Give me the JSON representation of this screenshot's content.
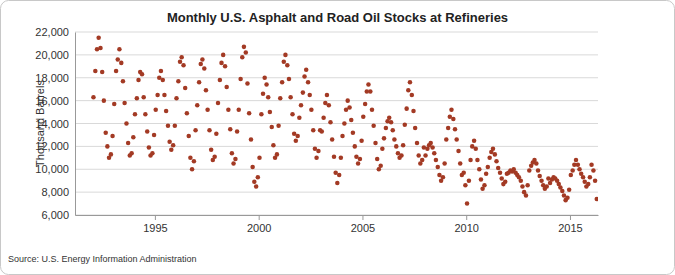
{
  "chart_data": {
    "type": "scatter",
    "title": "Monthly U.S. Asphalt and Road Oil Stocks at Refineries",
    "y_label": "Thousand Barrels",
    "source": "Source: U.S. Energy Information Administration",
    "color": "#a33a24",
    "marker": "circle",
    "grid": true,
    "xlim": [
      1991.15,
      2016.35
    ],
    "xticks": [
      1995,
      2000,
      2005,
      2010,
      2015
    ],
    "ylim": [
      6000,
      22000
    ],
    "yticks": [
      {
        "value": 6000,
        "label": "6,000"
      },
      {
        "value": 8000,
        "label": "8,000"
      },
      {
        "value": 10000,
        "label": "10,000"
      },
      {
        "value": 12000,
        "label": "12,000"
      },
      {
        "value": 14000,
        "label": "14,000"
      },
      {
        "value": 16000,
        "label": "16,000"
      },
      {
        "value": 18000,
        "label": "18,000"
      },
      {
        "value": 20000,
        "label": "20,000"
      },
      {
        "value": 22000,
        "label": "22,000"
      }
    ],
    "x": [
      1992.04,
      1992.13,
      1992.21,
      1992.29,
      1992.38,
      1992.46,
      1992.54,
      1992.63,
      1992.71,
      1992.79,
      1992.88,
      1992.96,
      1993.04,
      1993.13,
      1993.21,
      1993.29,
      1993.38,
      1993.46,
      1993.54,
      1993.63,
      1993.71,
      1993.79,
      1993.88,
      1993.96,
      1994.04,
      1994.13,
      1994.21,
      1994.29,
      1994.38,
      1994.46,
      1994.54,
      1994.63,
      1994.71,
      1994.79,
      1994.88,
      1994.96,
      1995.04,
      1995.13,
      1995.21,
      1995.29,
      1995.38,
      1995.46,
      1995.54,
      1995.63,
      1995.71,
      1995.79,
      1995.88,
      1995.96,
      1996.04,
      1996.13,
      1996.21,
      1996.29,
      1996.38,
      1996.46,
      1996.54,
      1996.63,
      1996.71,
      1996.79,
      1996.88,
      1996.96,
      1997.04,
      1997.13,
      1997.21,
      1997.29,
      1997.38,
      1997.46,
      1997.54,
      1997.63,
      1997.71,
      1997.79,
      1997.88,
      1997.96,
      1998.04,
      1998.13,
      1998.21,
      1998.29,
      1998.38,
      1998.46,
      1998.54,
      1998.63,
      1998.71,
      1998.79,
      1998.88,
      1998.96,
      1999.04,
      1999.13,
      1999.21,
      1999.29,
      1999.38,
      1999.46,
      1999.54,
      1999.63,
      1999.71,
      1999.79,
      1999.88,
      1999.96,
      2000.04,
      2000.13,
      2000.21,
      2000.29,
      2000.38,
      2000.46,
      2000.54,
      2000.63,
      2000.71,
      2000.79,
      2000.88,
      2000.96,
      2001.04,
      2001.13,
      2001.21,
      2001.29,
      2001.38,
      2001.46,
      2001.54,
      2001.63,
      2001.71,
      2001.79,
      2001.88,
      2001.96,
      2002.04,
      2002.13,
      2002.21,
      2002.29,
      2002.38,
      2002.46,
      2002.54,
      2002.63,
      2002.71,
      2002.79,
      2002.88,
      2002.96,
      2003.04,
      2003.13,
      2003.21,
      2003.29,
      2003.38,
      2003.46,
      2003.54,
      2003.63,
      2003.71,
      2003.79,
      2003.88,
      2003.96,
      2004.04,
      2004.13,
      2004.21,
      2004.29,
      2004.38,
      2004.46,
      2004.54,
      2004.63,
      2004.71,
      2004.79,
      2004.88,
      2004.96,
      2005.04,
      2005.13,
      2005.21,
      2005.29,
      2005.38,
      2005.46,
      2005.54,
      2005.63,
      2005.71,
      2005.79,
      2005.88,
      2005.96,
      2006.04,
      2006.13,
      2006.21,
      2006.29,
      2006.38,
      2006.46,
      2006.54,
      2006.63,
      2006.71,
      2006.79,
      2006.88,
      2006.96,
      2007.04,
      2007.13,
      2007.21,
      2007.29,
      2007.38,
      2007.46,
      2007.54,
      2007.63,
      2007.71,
      2007.79,
      2007.88,
      2007.96,
      2008.04,
      2008.13,
      2008.21,
      2008.29,
      2008.38,
      2008.46,
      2008.54,
      2008.63,
      2008.71,
      2008.79,
      2008.88,
      2008.96,
      2009.04,
      2009.13,
      2009.21,
      2009.29,
      2009.38,
      2009.46,
      2009.54,
      2009.63,
      2009.71,
      2009.79,
      2009.88,
      2009.96,
      2010.04,
      2010.13,
      2010.21,
      2010.29,
      2010.38,
      2010.46,
      2010.54,
      2010.63,
      2010.71,
      2010.79,
      2010.88,
      2010.96,
      2011.04,
      2011.13,
      2011.21,
      2011.29,
      2011.38,
      2011.46,
      2011.54,
      2011.63,
      2011.71,
      2011.79,
      2011.88,
      2011.96,
      2012.04,
      2012.13,
      2012.21,
      2012.29,
      2012.38,
      2012.46,
      2012.54,
      2012.63,
      2012.71,
      2012.79,
      2012.88,
      2012.96,
      2013.04,
      2013.13,
      2013.21,
      2013.29,
      2013.38,
      2013.46,
      2013.54,
      2013.63,
      2013.71,
      2013.79,
      2013.88,
      2013.96,
      2014.04,
      2014.13,
      2014.21,
      2014.29,
      2014.38,
      2014.46,
      2014.54,
      2014.63,
      2014.71,
      2014.79,
      2014.88,
      2014.96,
      2015.04,
      2015.13,
      2015.21,
      2015.29,
      2015.38,
      2015.46,
      2015.54,
      2015.63,
      2015.71,
      2015.79,
      2015.88,
      2015.96,
      2016.04,
      2016.13,
      2016.21,
      2016.29
    ],
    "values": [
      16300,
      18600,
      20500,
      21500,
      20600,
      18500,
      16000,
      13200,
      12000,
      11000,
      11300,
      12900,
      15700,
      18600,
      19600,
      20500,
      19300,
      17700,
      15800,
      14000,
      12300,
      11200,
      11400,
      12800,
      14800,
      16200,
      17800,
      18500,
      18300,
      16300,
      14800,
      13300,
      11900,
      11200,
      11400,
      13000,
      15200,
      16500,
      18000,
      18600,
      17800,
      16500,
      15100,
      13800,
      12400,
      11700,
      12100,
      13800,
      16200,
      17700,
      19400,
      19800,
      19100,
      17100,
      14900,
      12900,
      11000,
      10000,
      10700,
      13400,
      15600,
      17600,
      19200,
      19600,
      18800,
      16900,
      15200,
      13400,
      11700,
      10800,
      11100,
      13100,
      15800,
      17800,
      19300,
      20000,
      19000,
      17200,
      15200,
      13500,
      11400,
      10500,
      10900,
      13300,
      15200,
      17900,
      19800,
      20700,
      20200,
      17500,
      14900,
      12600,
      10200,
      8900,
      8500,
      9300,
      11000,
      14800,
      16600,
      18000,
      17400,
      16300,
      15000,
      13700,
      12100,
      11000,
      11300,
      13800,
      16200,
      17600,
      19400,
      20000,
      19100,
      17900,
      16300,
      14800,
      13100,
      12500,
      12900,
      14500,
      15600,
      16700,
      18100,
      18700,
      17600,
      16500,
      15200,
      13400,
      11800,
      11000,
      11600,
      13400,
      13300,
      14500,
      15800,
      16500,
      15600,
      14100,
      12600,
      11100,
      9700,
      8800,
      9500,
      11000,
      12900,
      14000,
      15200,
      16000,
      15400,
      14300,
      13200,
      12000,
      11100,
      10500,
      10900,
      12500,
      14600,
      15700,
      16800,
      17400,
      16800,
      15200,
      13800,
      12300,
      10900,
      10000,
      10300,
      11800,
      12700,
      13600,
      14200,
      14500,
      14100,
      13400,
      12600,
      12000,
      11400,
      11000,
      11200,
      12100,
      13900,
      15300,
      16900,
      17600,
      16500,
      15100,
      13600,
      12300,
      11200,
      10500,
      10800,
      11900,
      11200,
      11800,
      12100,
      12300,
      11900,
      11400,
      10800,
      10200,
      9500,
      9000,
      9300,
      10500,
      12600,
      13600,
      14600,
      15200,
      14400,
      13500,
      12600,
      11600,
      10500,
      9500,
      9700,
      8600,
      7000,
      9000,
      10800,
      12000,
      12500,
      11800,
      10800,
      10000,
      9100,
      8300,
      8600,
      9600,
      10200,
      11000,
      11500,
      11800,
      11300,
      10700,
      10100,
      9700,
      9200,
      8700,
      8900,
      9600,
      9700,
      9900,
      9800,
      10000,
      9700,
      9500,
      9300,
      9000,
      8500,
      8000,
      7700,
      8600,
      9900,
      10300,
      10600,
      10800,
      10500,
      9900,
      9400,
      9000,
      8600,
      8300,
      8500,
      9200,
      8800,
      9100,
      9300,
      9200,
      9000,
      8700,
      8400,
      8100,
      7700,
      7300,
      7500,
      8200,
      9500,
      9900,
      10400,
      10800,
      10400,
      10000,
      9600,
      9300,
      8900,
      8500,
      8700,
      9300,
      10400,
      9900,
      9000,
      7400
    ]
  }
}
